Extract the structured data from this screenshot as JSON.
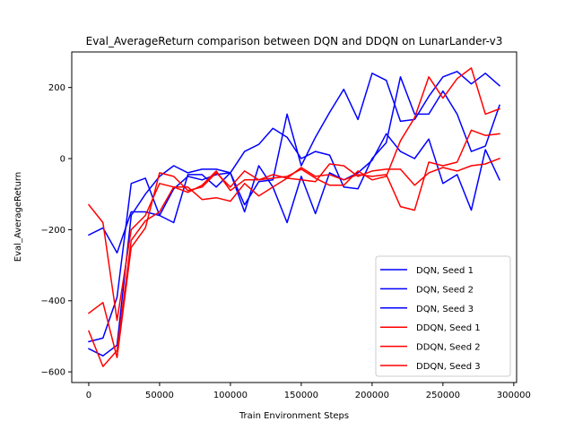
{
  "chart_data": {
    "type": "line",
    "title": "Eval_AverageReturn comparison between DQN and DDQN on LunarLander-v3",
    "xlabel": "Train Environment Steps",
    "ylabel": "Eval_AverageReturn",
    "xlim": [
      -12000,
      302000
    ],
    "ylim": [
      -630,
      300
    ],
    "xticks": [
      0,
      50000,
      100000,
      150000,
      200000,
      250000,
      300000
    ],
    "xtick_labels": [
      "0",
      "50000",
      "100000",
      "150000",
      "200000",
      "250000",
      "300000"
    ],
    "yticks": [
      -600,
      -400,
      -200,
      0,
      200
    ],
    "ytick_labels": [
      "−600",
      "−400",
      "−200",
      "0",
      "200"
    ],
    "grid": false,
    "legend_position": "lower right",
    "x": [
      0,
      10000,
      20000,
      30000,
      40000,
      50000,
      60000,
      70000,
      80000,
      90000,
      100000,
      110000,
      120000,
      130000,
      140000,
      150000,
      160000,
      170000,
      180000,
      190000,
      200000,
      210000,
      220000,
      230000,
      240000,
      250000,
      260000,
      270000,
      280000,
      290000
    ],
    "series": [
      {
        "name": "DQN, Seed 1",
        "color": "#0000ff",
        "values": [
          -215,
          -195,
          -265,
          -150,
          -150,
          -160,
          -180,
          -45,
          -45,
          -80,
          -40,
          -150,
          -20,
          -80,
          -180,
          -50,
          -155,
          -40,
          -60,
          -40,
          -5,
          70,
          20,
          0,
          55,
          -70,
          -45,
          -145,
          25,
          -60
        ]
      },
      {
        "name": "DQN, Seed 2",
        "color": "#0000ff",
        "values": [
          -515,
          -505,
          -390,
          -70,
          -55,
          -160,
          -85,
          -50,
          -60,
          -45,
          -40,
          20,
          40,
          85,
          60,
          0,
          20,
          10,
          -80,
          -85,
          0,
          45,
          230,
          125,
          125,
          190,
          125,
          20,
          35,
          150
        ]
      },
      {
        "name": "DQN, Seed 3",
        "color": "#0000ff",
        "values": [
          -535,
          -555,
          -525,
          -160,
          -100,
          -50,
          -20,
          -40,
          -30,
          -30,
          -40,
          -130,
          -65,
          -60,
          125,
          -20,
          60,
          130,
          195,
          110,
          240,
          220,
          105,
          110,
          175,
          230,
          245,
          210,
          240,
          205
        ]
      },
      {
        "name": "DDQN, Seed 1",
        "color": "#ff0000",
        "values": [
          -130,
          -180,
          -455,
          -200,
          -160,
          -70,
          -80,
          -80,
          -115,
          -110,
          -120,
          -70,
          -105,
          -80,
          -55,
          -25,
          -50,
          -45,
          -60,
          -45,
          -50,
          -45,
          -135,
          -145,
          -10,
          -20,
          -10,
          80,
          65,
          70
        ]
      },
      {
        "name": "DDQN, Seed 2",
        "color": "#ff0000",
        "values": [
          -435,
          -405,
          -560,
          -250,
          -195,
          -40,
          -50,
          -90,
          -80,
          -40,
          -80,
          -35,
          -60,
          -45,
          -55,
          -60,
          -65,
          -15,
          -20,
          -50,
          -35,
          -30,
          -30,
          -75,
          -40,
          -25,
          -35,
          -20,
          -15,
          0
        ]
      },
      {
        "name": "DDQN, Seed 3",
        "color": "#ff0000",
        "values": [
          -485,
          -585,
          -540,
          -230,
          -175,
          -150,
          -80,
          -95,
          -75,
          -35,
          -90,
          -60,
          -60,
          -55,
          -50,
          -30,
          -55,
          -75,
          -75,
          -35,
          -60,
          -50,
          50,
          115,
          230,
          170,
          225,
          255,
          125,
          140
        ]
      }
    ]
  }
}
